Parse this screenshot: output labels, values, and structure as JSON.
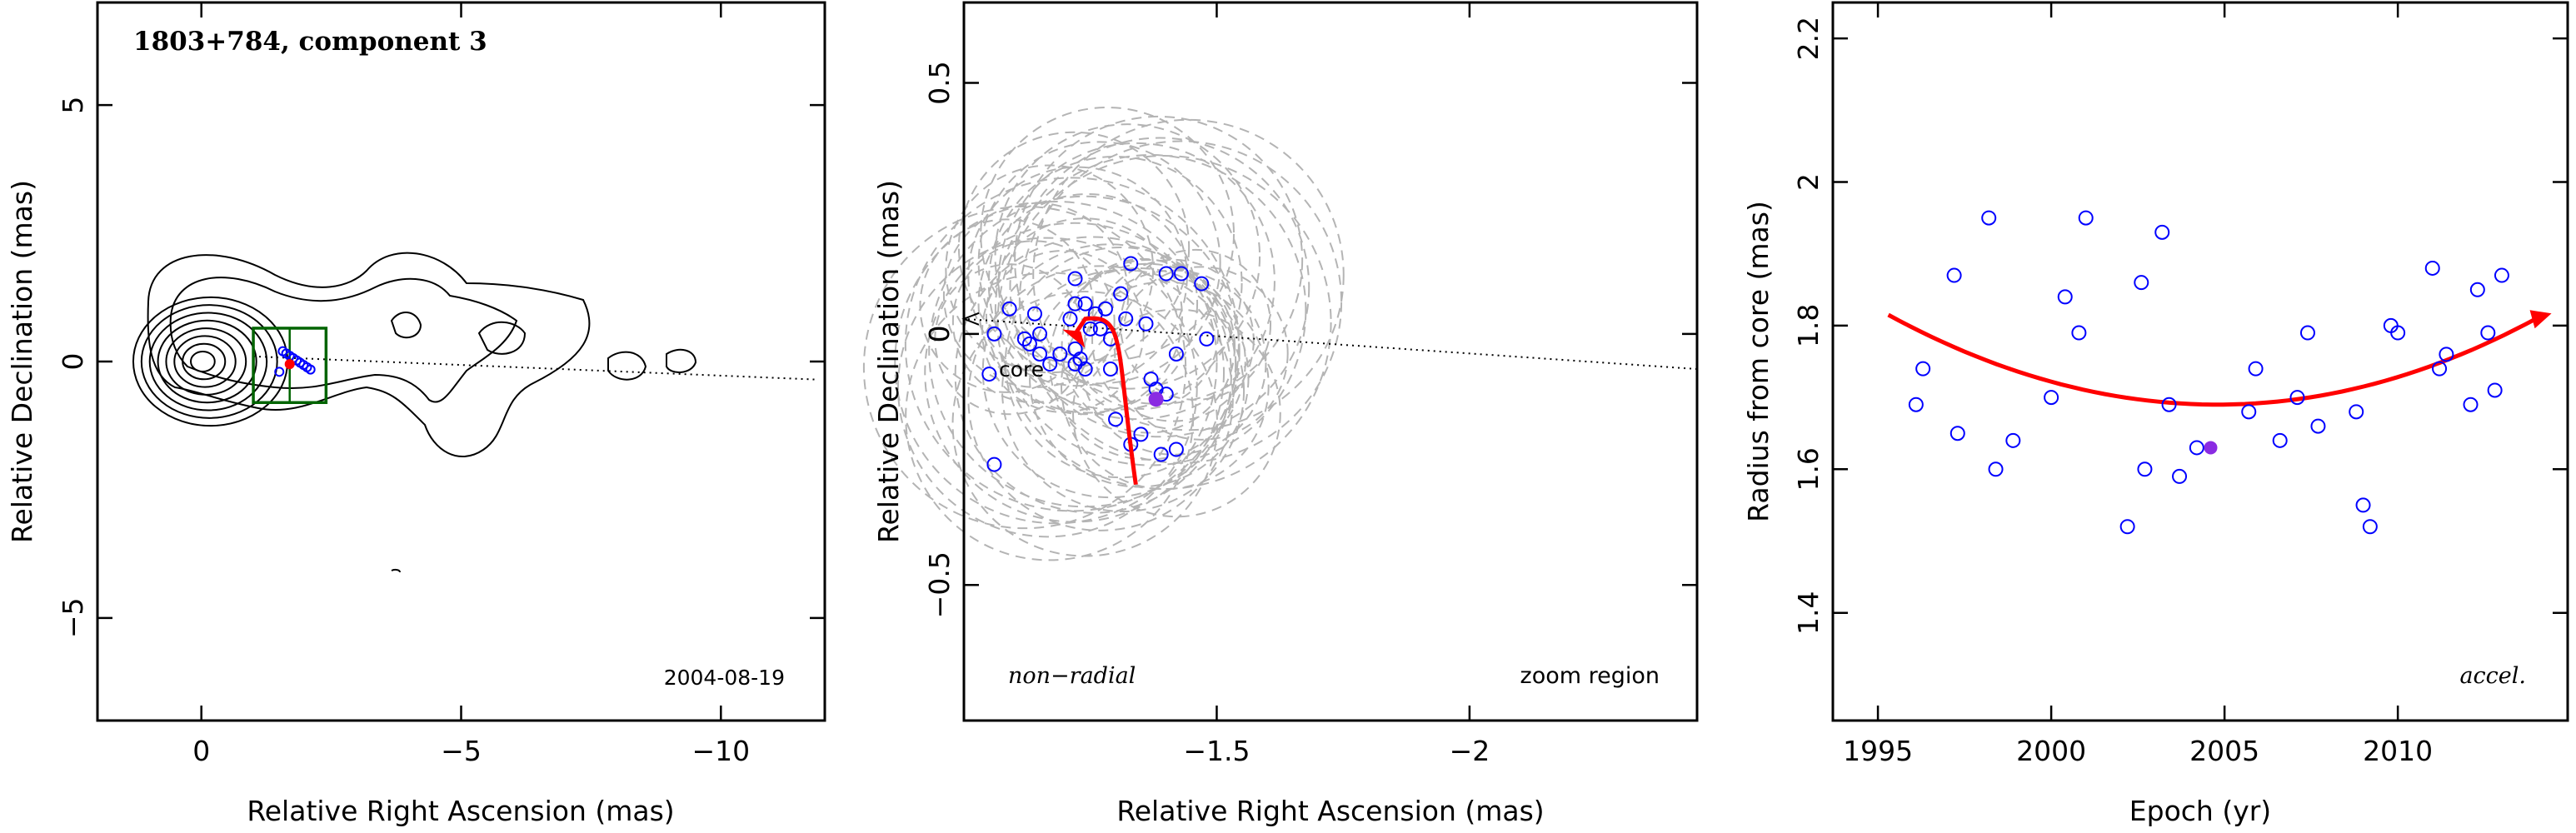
{
  "chart_data": [
    {
      "type": "scatter",
      "panel": "vlbi-image",
      "title": "1803+784, component 3",
      "date_label": "2004-08-19",
      "xlabel": "Relative Right Ascension (mas)",
      "ylabel": "Relative Declination (mas)",
      "xlim": [
        2,
        -12
      ],
      "ylim": [
        -7,
        7
      ],
      "xticks": [
        0,
        -5,
        -10
      ],
      "xtick_labels": [
        "0",
        "−5",
        "−10"
      ],
      "yticks": [
        5,
        0,
        -5
      ],
      "ytick_labels": [
        "5",
        "0",
        "−5"
      ],
      "contours": {
        "color": "#000000",
        "core_levels_mas": [
          0.18,
          0.32,
          0.46,
          0.6,
          0.74,
          0.88,
          1.02,
          1.16
        ],
        "core_center": [
          0,
          0
        ]
      },
      "jet_axis": {
        "from": [
          -1.0,
          0.1
        ],
        "to": [
          -11.8,
          -0.35
        ],
        "style": "dotted"
      },
      "zoom_box": {
        "color": "#006400",
        "ra": [
          -1.0,
          -2.4
        ],
        "dec": [
          -0.8,
          0.65
        ]
      },
      "component_points": {
        "color": "#0000ff",
        "ra_range": [
          -1.5,
          -2.1
        ],
        "dec_range": [
          -0.2,
          0.2
        ]
      },
      "red_marker": {
        "color": "#ff0000",
        "ra": -1.7,
        "dec": -0.05
      }
    },
    {
      "type": "scatter",
      "panel": "zoom-region",
      "xlabel": "Relative Right Ascension (mas)",
      "ylabel": "Relative Declination (mas)",
      "xlim": [
        -1.0,
        -2.45
      ],
      "ylim": [
        -0.77,
        0.66
      ],
      "xticks": [
        -1.5,
        -2
      ],
      "xtick_labels": [
        "−1.5",
        "−2"
      ],
      "yticks": [
        0.5,
        0,
        -0.5
      ],
      "ytick_labels": [
        "0.5",
        "0",
        "−0.5"
      ],
      "annotations": {
        "left": "non−radial",
        "right": "zoom region",
        "core": "core"
      },
      "core_arrow": {
        "from": [
          -2.45,
          -0.07
        ],
        "to": [
          -1.0,
          0.03
        ],
        "style": "dotted"
      },
      "points": {
        "color": "#0000ff",
        "x": [
          -1.43,
          -1.4,
          -1.47,
          -1.48,
          -1.42,
          -1.36,
          -1.4,
          -1.33,
          -1.31,
          -1.32,
          -1.28,
          -1.26,
          -1.24,
          -1.22,
          -1.21,
          -1.25,
          -1.27,
          -1.29,
          -1.22,
          -1.19,
          -1.15,
          -1.14,
          -1.12,
          -1.09,
          -1.06,
          -1.05,
          -1.13,
          -1.15,
          -1.17,
          -1.22,
          -1.23,
          -1.24,
          -1.29,
          -1.3,
          -1.37,
          -1.38,
          -1.35,
          -1.33,
          -1.39,
          -1.42,
          -1.06,
          -1.22
        ],
        "y": [
          0.12,
          0.12,
          0.1,
          -0.01,
          -0.04,
          0.02,
          -0.12,
          0.14,
          0.08,
          0.03,
          0.05,
          0.04,
          0.06,
          0.06,
          0.03,
          0.01,
          0.01,
          -0.01,
          -0.03,
          -0.04,
          0.0,
          0.04,
          -0.01,
          0.05,
          0.0,
          -0.08,
          -0.02,
          -0.04,
          -0.06,
          -0.06,
          -0.05,
          -0.07,
          -0.07,
          -0.17,
          -0.09,
          -0.11,
          -0.2,
          -0.22,
          -0.24,
          -0.23,
          -0.26,
          0.11
        ]
      },
      "highlight_point": {
        "color": "#8a2be2",
        "x": -1.38,
        "y": -0.13
      },
      "model_circles": {
        "color": "#b4b4b4",
        "style": "dashed"
      },
      "track_arrow": {
        "color": "#ff0000",
        "path": [
          [
            -1.34,
            -0.3
          ],
          [
            -1.3,
            -0.02
          ],
          [
            -1.32,
            0.04
          ],
          [
            -1.24,
            0.03
          ],
          [
            -1.22,
            0.0
          ]
        ]
      }
    },
    {
      "type": "scatter",
      "panel": "radius-epoch",
      "xlabel": "Epoch (yr)",
      "ylabel": "Radius from core (mas)",
      "xlim": [
        1993.7,
        2014.9
      ],
      "ylim": [
        1.25,
        2.25
      ],
      "xticks": [
        1995,
        2000,
        2005,
        2010
      ],
      "xtick_labels": [
        "1995",
        "2000",
        "2005",
        "2010"
      ],
      "yticks": [
        1.4,
        1.6,
        1.8,
        2,
        2.2
      ],
      "ytick_labels": [
        "1.4",
        "1.6",
        "1.8",
        "2",
        "2.2"
      ],
      "annotation": "accel.",
      "points": {
        "color": "#0000ff",
        "x": [
          1996.1,
          1996.3,
          1997.2,
          1997.3,
          1998.2,
          1998.4,
          1998.9,
          2000.0,
          2000.4,
          2000.8,
          2001.0,
          2002.2,
          2002.6,
          2002.7,
          2003.2,
          2003.4,
          2003.7,
          2004.2,
          2005.7,
          2005.9,
          2006.6,
          2007.1,
          2007.4,
          2007.7,
          2008.8,
          2009.0,
          2009.2,
          2009.8,
          2010.0,
          2011.0,
          2011.2,
          2011.4,
          2012.1,
          2012.3,
          2012.6,
          2012.8,
          2013.0
        ],
        "y": [
          1.69,
          1.74,
          1.87,
          1.65,
          1.95,
          1.6,
          1.64,
          1.7,
          1.84,
          1.79,
          1.95,
          1.52,
          1.86,
          1.6,
          1.93,
          1.69,
          1.59,
          1.63,
          1.68,
          1.74,
          1.64,
          1.7,
          1.79,
          1.66,
          1.68,
          1.55,
          1.52,
          1.8,
          1.79,
          1.88,
          1.74,
          1.76,
          1.69,
          1.85,
          1.79,
          1.71,
          1.87
        ]
      },
      "highlight_point": {
        "color": "#8a2be2",
        "x": 2004.6,
        "y": 1.63
      },
      "trend_arrow": {
        "color": "#ff0000",
        "x0": 1995.3,
        "x1": 2014.0,
        "x_min": 2004.8,
        "y_min": 1.69,
        "y_start": 1.815,
        "y_end": 1.81
      }
    }
  ]
}
